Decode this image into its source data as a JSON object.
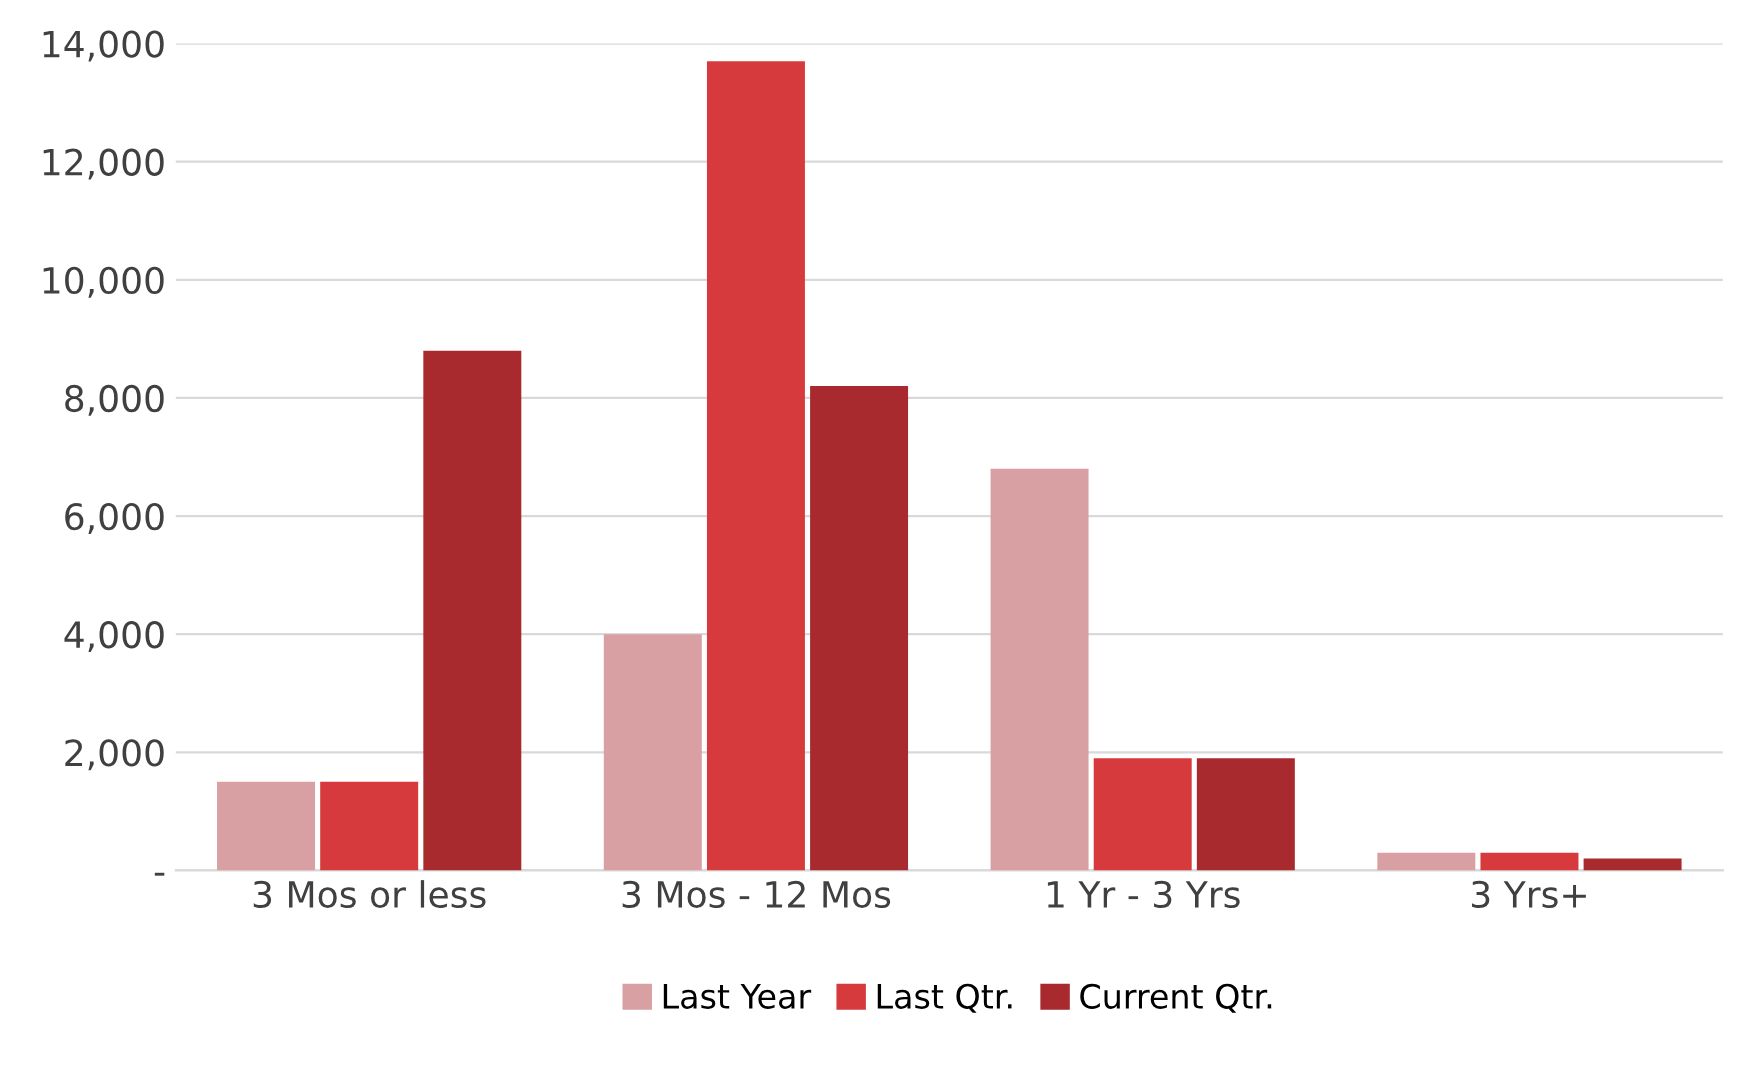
{
  "chart_data": {
    "type": "bar",
    "categories": [
      "3 Mos or less",
      "3 Mos - 12 Mos",
      "1 Yr - 3 Yrs",
      "3 Yrs+"
    ],
    "series": [
      {
        "name": "Last Year",
        "color": "#d9a0a3",
        "values": [
          1500,
          4000,
          6800,
          300
        ]
      },
      {
        "name": "Last Qtr.",
        "color": "#d63a3c",
        "values": [
          1500,
          13700,
          1900,
          300
        ]
      },
      {
        "name": "Current Qtr.",
        "color": "#a82a2e",
        "values": [
          8800,
          8200,
          1900,
          200
        ]
      }
    ],
    "ylim": [
      0,
      14000
    ],
    "yticks": [
      {
        "value": 0,
        "label": "-"
      },
      {
        "value": 2000,
        "label": "2,000"
      },
      {
        "value": 4000,
        "label": "4,000"
      },
      {
        "value": 6000,
        "label": "6,000"
      },
      {
        "value": 8000,
        "label": "8,000"
      },
      {
        "value": 10000,
        "label": "10,000"
      },
      {
        "value": 12000,
        "label": "12,000"
      },
      {
        "value": 14000,
        "label": "14,000"
      }
    ],
    "grid": "y",
    "legend": "bottom"
  }
}
